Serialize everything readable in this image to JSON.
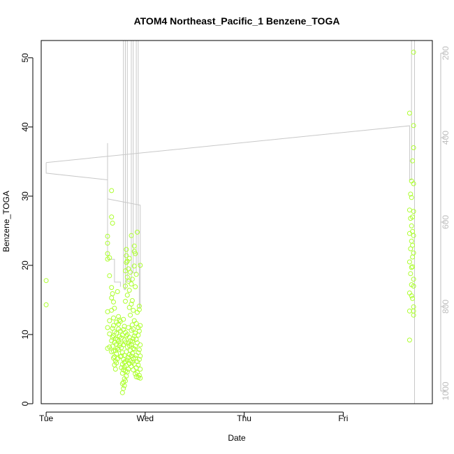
{
  "chart_data": {
    "type": "scatter",
    "title": "ATOM4 Northeast_Pacific_1 Benzene_TOGA",
    "xlabel": "Date",
    "ylabel": "Benzene_TOGA",
    "x_unit": "days since Tue 00:00",
    "xlim": [
      -0.05,
      3.9
    ],
    "ylim": [
      0,
      52.5
    ],
    "x_ticks": [
      {
        "value": 0,
        "label": "Tue"
      },
      {
        "value": 1,
        "label": "Wed"
      },
      {
        "value": 2,
        "label": "Thu"
      },
      {
        "value": 3,
        "label": "Fri"
      }
    ],
    "y_ticks": [
      0,
      10,
      20,
      30,
      40,
      50
    ],
    "right_axis": {
      "label": "",
      "reversed": true,
      "lim": [
        1030,
        170
      ],
      "ticks": [
        200,
        400,
        600,
        800,
        1000
      ],
      "color": "#bdbdbd"
    },
    "series": [
      {
        "color": "#adff2f",
        "marker": "open-circle",
        "points": [
          [
            0.0,
            17.8
          ],
          [
            0.0,
            14.3
          ],
          [
            0.62,
            8.0
          ],
          [
            0.62,
            11.0
          ],
          [
            0.62,
            13.3
          ],
          [
            0.62,
            20.9
          ],
          [
            0.62,
            21.7
          ],
          [
            0.62,
            23.2
          ],
          [
            0.62,
            24.2
          ],
          [
            0.64,
            8.2
          ],
          [
            0.64,
            10.1
          ],
          [
            0.64,
            12.0
          ],
          [
            0.64,
            18.5
          ],
          [
            0.64,
            21.1
          ],
          [
            0.66,
            7.5
          ],
          [
            0.66,
            9.1
          ],
          [
            0.66,
            13.5
          ],
          [
            0.66,
            15.3
          ],
          [
            0.66,
            16.8
          ],
          [
            0.66,
            27.0
          ],
          [
            0.66,
            30.8
          ],
          [
            0.67,
            8.3
          ],
          [
            0.67,
            9.6
          ],
          [
            0.67,
            10.9
          ],
          [
            0.67,
            15.9
          ],
          [
            0.67,
            26.1
          ],
          [
            0.68,
            6.6
          ],
          [
            0.68,
            7.6
          ],
          [
            0.68,
            9.8
          ],
          [
            0.68,
            11.3
          ],
          [
            0.68,
            12.4
          ],
          [
            0.68,
            14.7
          ],
          [
            0.69,
            5.6
          ],
          [
            0.69,
            6.8
          ],
          [
            0.69,
            8.9
          ],
          [
            0.69,
            10.4
          ],
          [
            0.69,
            13.8
          ],
          [
            0.7,
            5.0
          ],
          [
            0.7,
            6.2
          ],
          [
            0.7,
            7.7
          ],
          [
            0.7,
            9.4
          ],
          [
            0.71,
            5.9
          ],
          [
            0.71,
            7.2
          ],
          [
            0.71,
            8.6
          ],
          [
            0.71,
            10.2
          ],
          [
            0.71,
            11.8
          ],
          [
            0.72,
            6.5
          ],
          [
            0.72,
            8.0
          ],
          [
            0.72,
            9.3
          ],
          [
            0.72,
            16.2
          ],
          [
            0.73,
            7.8
          ],
          [
            0.73,
            9.0
          ],
          [
            0.73,
            10.8
          ],
          [
            0.73,
            11.5
          ],
          [
            0.73,
            12.6
          ],
          [
            0.74,
            8.4
          ],
          [
            0.74,
            9.7
          ],
          [
            0.74,
            12.1
          ],
          [
            0.75,
            6.8
          ],
          [
            0.75,
            8.7
          ],
          [
            0.75,
            10.5
          ],
          [
            0.75,
            11.9
          ],
          [
            0.76,
            5.2
          ],
          [
            0.76,
            6.9
          ],
          [
            0.76,
            8.1
          ],
          [
            0.76,
            9.5
          ],
          [
            0.77,
            2.9
          ],
          [
            0.77,
            1.6
          ],
          [
            0.77,
            4.4
          ],
          [
            0.77,
            5.7
          ],
          [
            0.77,
            7.4
          ],
          [
            0.77,
            9.9
          ],
          [
            0.78,
            2.2
          ],
          [
            0.78,
            3.1
          ],
          [
            0.78,
            4.9
          ],
          [
            0.78,
            6.4
          ],
          [
            0.78,
            8.5
          ],
          [
            0.78,
            10.7
          ],
          [
            0.78,
            12.2
          ],
          [
            0.79,
            2.6
          ],
          [
            0.79,
            3.6
          ],
          [
            0.79,
            5.3
          ],
          [
            0.79,
            6.0
          ],
          [
            0.79,
            7.0
          ],
          [
            0.79,
            9.2
          ],
          [
            0.79,
            11.2
          ],
          [
            0.8,
            3.3
          ],
          [
            0.8,
            4.7
          ],
          [
            0.8,
            6.1
          ],
          [
            0.8,
            8.9
          ],
          [
            0.8,
            10.3
          ],
          [
            0.8,
            14.8
          ],
          [
            0.8,
            17.0
          ],
          [
            0.8,
            19.2
          ],
          [
            0.81,
            4.0
          ],
          [
            0.81,
            5.5
          ],
          [
            0.81,
            7.5
          ],
          [
            0.81,
            9.8
          ],
          [
            0.81,
            20.4
          ],
          [
            0.81,
            21.4
          ],
          [
            0.81,
            22.3
          ],
          [
            0.82,
            4.6
          ],
          [
            0.82,
            6.3
          ],
          [
            0.82,
            8.2
          ],
          [
            0.82,
            10.0
          ],
          [
            0.82,
            15.7
          ],
          [
            0.82,
            18.3
          ],
          [
            0.82,
            20.6
          ],
          [
            0.83,
            5.0
          ],
          [
            0.83,
            6.7
          ],
          [
            0.83,
            8.8
          ],
          [
            0.83,
            11.0
          ],
          [
            0.83,
            17.7
          ],
          [
            0.83,
            19.5
          ],
          [
            0.84,
            5.8
          ],
          [
            0.84,
            7.1
          ],
          [
            0.84,
            8.4
          ],
          [
            0.84,
            9.6
          ],
          [
            0.84,
            13.9
          ],
          [
            0.84,
            16.4
          ],
          [
            0.84,
            21.0
          ],
          [
            0.85,
            6.2
          ],
          [
            0.85,
            7.7
          ],
          [
            0.85,
            9.1
          ],
          [
            0.85,
            12.8
          ],
          [
            0.85,
            19.0
          ],
          [
            0.86,
            5.4
          ],
          [
            0.86,
            6.9
          ],
          [
            0.86,
            8.6
          ],
          [
            0.86,
            10.6
          ],
          [
            0.86,
            14.4
          ],
          [
            0.86,
            17.3
          ],
          [
            0.86,
            24.3
          ],
          [
            0.87,
            6.0
          ],
          [
            0.87,
            7.3
          ],
          [
            0.87,
            9.0
          ],
          [
            0.87,
            11.4
          ],
          [
            0.87,
            14.9
          ],
          [
            0.87,
            18.0
          ],
          [
            0.88,
            4.9
          ],
          [
            0.88,
            6.5
          ],
          [
            0.88,
            8.0
          ],
          [
            0.88,
            9.4
          ],
          [
            0.88,
            10.8
          ],
          [
            0.88,
            13.5
          ],
          [
            0.89,
            5.7
          ],
          [
            0.89,
            7.9
          ],
          [
            0.89,
            9.8
          ],
          [
            0.89,
            12.0
          ],
          [
            0.89,
            19.9
          ],
          [
            0.89,
            22.0
          ],
          [
            0.89,
            22.8
          ],
          [
            0.9,
            4.3
          ],
          [
            0.9,
            6.6
          ],
          [
            0.9,
            8.3
          ],
          [
            0.9,
            10.2
          ],
          [
            0.9,
            16.9
          ],
          [
            0.9,
            21.7
          ],
          [
            0.91,
            3.9
          ],
          [
            0.91,
            5.2
          ],
          [
            0.91,
            7.0
          ],
          [
            0.91,
            9.3
          ],
          [
            0.91,
            11.6
          ],
          [
            0.91,
            18.7
          ],
          [
            0.92,
            4.5
          ],
          [
            0.92,
            6.1
          ],
          [
            0.92,
            8.8
          ],
          [
            0.92,
            13.2
          ],
          [
            0.92,
            24.8
          ],
          [
            0.93,
            3.8
          ],
          [
            0.93,
            5.6
          ],
          [
            0.93,
            7.4
          ],
          [
            0.93,
            9.9
          ],
          [
            0.93,
            11.0
          ],
          [
            0.94,
            4.1
          ],
          [
            0.94,
            6.4
          ],
          [
            0.94,
            7.8
          ],
          [
            0.94,
            10.5
          ],
          [
            0.94,
            13.6
          ],
          [
            0.94,
            14.1
          ],
          [
            0.95,
            3.7
          ],
          [
            0.95,
            5.0
          ],
          [
            0.95,
            6.9
          ],
          [
            0.95,
            8.5
          ],
          [
            0.95,
            11.3
          ],
          [
            0.95,
            20.0
          ],
          [
            3.67,
            42.0
          ],
          [
            3.67,
            28.0
          ],
          [
            3.67,
            24.6
          ],
          [
            3.67,
            20.5
          ],
          [
            3.67,
            16.0
          ],
          [
            3.67,
            13.4
          ],
          [
            3.67,
            9.2
          ],
          [
            3.68,
            30.3
          ],
          [
            3.68,
            26.8
          ],
          [
            3.68,
            22.4
          ],
          [
            3.68,
            18.8
          ],
          [
            3.69,
            32.2
          ],
          [
            3.69,
            29.8
          ],
          [
            3.69,
            25.7
          ],
          [
            3.69,
            23.5
          ],
          [
            3.69,
            19.7
          ],
          [
            3.69,
            17.2
          ],
          [
            3.69,
            15.6
          ],
          [
            3.7,
            35.1
          ],
          [
            3.7,
            27.0
          ],
          [
            3.7,
            24.9
          ],
          [
            3.7,
            22.9
          ],
          [
            3.7,
            21.2
          ],
          [
            3.7,
            19.8
          ],
          [
            3.7,
            15.2
          ],
          [
            3.71,
            50.8
          ],
          [
            3.71,
            40.2
          ],
          [
            3.71,
            37.0
          ],
          [
            3.71,
            31.8
          ],
          [
            3.71,
            27.8
          ],
          [
            3.71,
            24.3
          ],
          [
            3.71,
            21.8
          ],
          [
            3.71,
            18.0
          ],
          [
            3.71,
            17.0
          ],
          [
            3.71,
            14.0
          ],
          [
            3.71,
            12.8
          ],
          [
            3.71,
            13.4
          ]
        ]
      }
    ],
    "overlay_line": {
      "color": "#c8c8c8",
      "axis": "right",
      "segments": [
        [
          [
            0.0,
            459
          ],
          [
            0.0,
            484
          ],
          [
            0.62,
            500
          ],
          [
            0.62,
            500
          ]
        ],
        [
          [
            0.62,
            413
          ],
          [
            0.62,
            688
          ],
          [
            0.69,
            688
          ],
          [
            0.69,
            742
          ],
          [
            0.75,
            742
          ],
          [
            0.75,
            753
          ]
        ],
        [
          [
            0.78,
            170
          ],
          [
            0.78,
            753
          ],
          [
            0.79,
            760
          ],
          [
            0.8,
            760
          ],
          [
            0.8,
            170
          ]
        ],
        [
          [
            0.82,
            170
          ],
          [
            0.82,
            740
          ],
          [
            0.86,
            740
          ],
          [
            0.86,
            170
          ]
        ],
        [
          [
            0.88,
            170
          ],
          [
            0.88,
            720
          ],
          [
            0.91,
            720
          ],
          [
            0.91,
            170
          ]
        ],
        [
          [
            0.93,
            170
          ],
          [
            0.93,
            700
          ],
          [
            0.94,
            700
          ],
          [
            0.94,
            800
          ],
          [
            0.95,
            800
          ],
          [
            0.95,
            560
          ],
          [
            0.62,
            545
          ]
        ],
        [
          [
            0.0,
            459
          ],
          [
            3.67,
            372
          ],
          [
            3.67,
            500
          ],
          [
            3.69,
            500
          ],
          [
            3.69,
            170
          ],
          [
            3.72,
            170
          ],
          [
            3.72,
            1030
          ]
        ]
      ]
    },
    "grid": false,
    "legend": null
  }
}
